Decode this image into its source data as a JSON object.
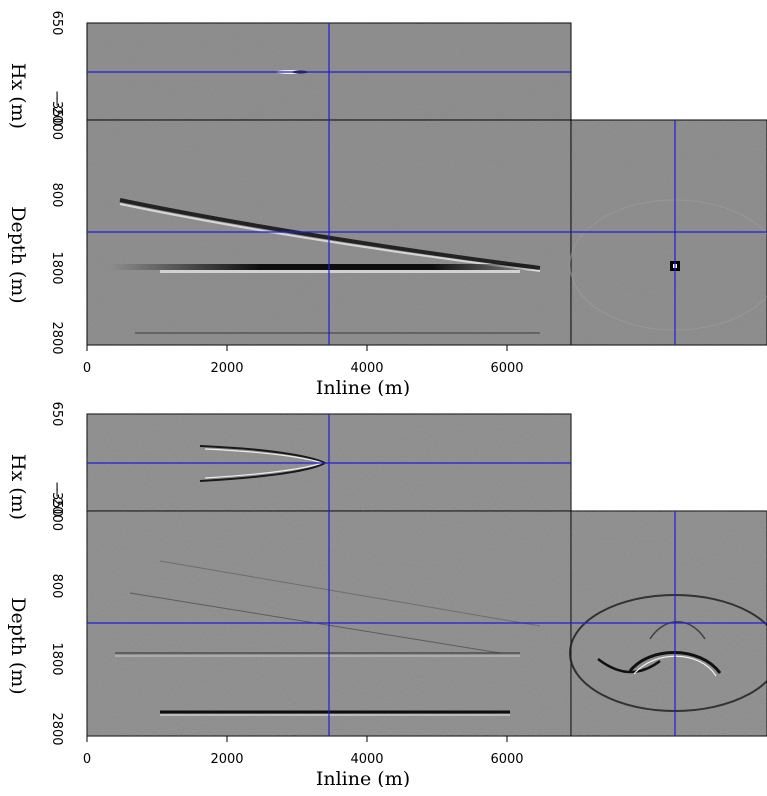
{
  "figures": [
    {
      "xlabel": "Inline (m)",
      "ylabel_top": "Hx (m)",
      "ylabel_main": "Depth (m)",
      "x_ticks": [
        "0",
        "2000",
        "4000",
        "6000"
      ],
      "hx_ticks": [
        "650",
        "−350"
      ],
      "depth_ticks": [
        "−2000",
        "800",
        "1800",
        "2800"
      ]
    },
    {
      "xlabel": "Inline (m)",
      "ylabel_top": "Hx (m)",
      "ylabel_main": "Depth (m)",
      "x_ticks": [
        "0",
        "2000",
        "4000",
        "6000"
      ],
      "hx_ticks": [
        "650",
        "−350"
      ],
      "depth_ticks": [
        "−2000",
        "800",
        "1800",
        "2800"
      ]
    }
  ],
  "colors": {
    "panel_gray": "#8a8a8a",
    "crosshair": "#1f1fd0",
    "frame": "#000000"
  }
}
